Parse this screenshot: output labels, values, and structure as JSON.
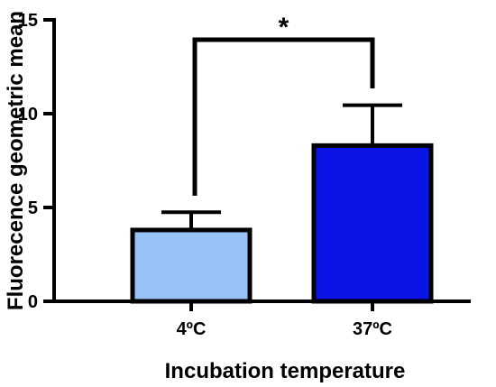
{
  "chart_data": {
    "type": "bar",
    "categories": [
      "4ºC",
      "37ºC"
    ],
    "values": [
      3.8,
      8.3
    ],
    "errors": [
      0.95,
      2.15
    ],
    "colors": [
      "#99c2f7",
      "#0a14e6"
    ],
    "xlabel": "Incubation temperature",
    "ylabel": "Fluorecence geometric mean",
    "ylim": [
      0,
      15
    ],
    "yticks": [
      0,
      5,
      10,
      15
    ],
    "grid": false,
    "significance": {
      "label": "*",
      "between": [
        0,
        1
      ]
    }
  }
}
